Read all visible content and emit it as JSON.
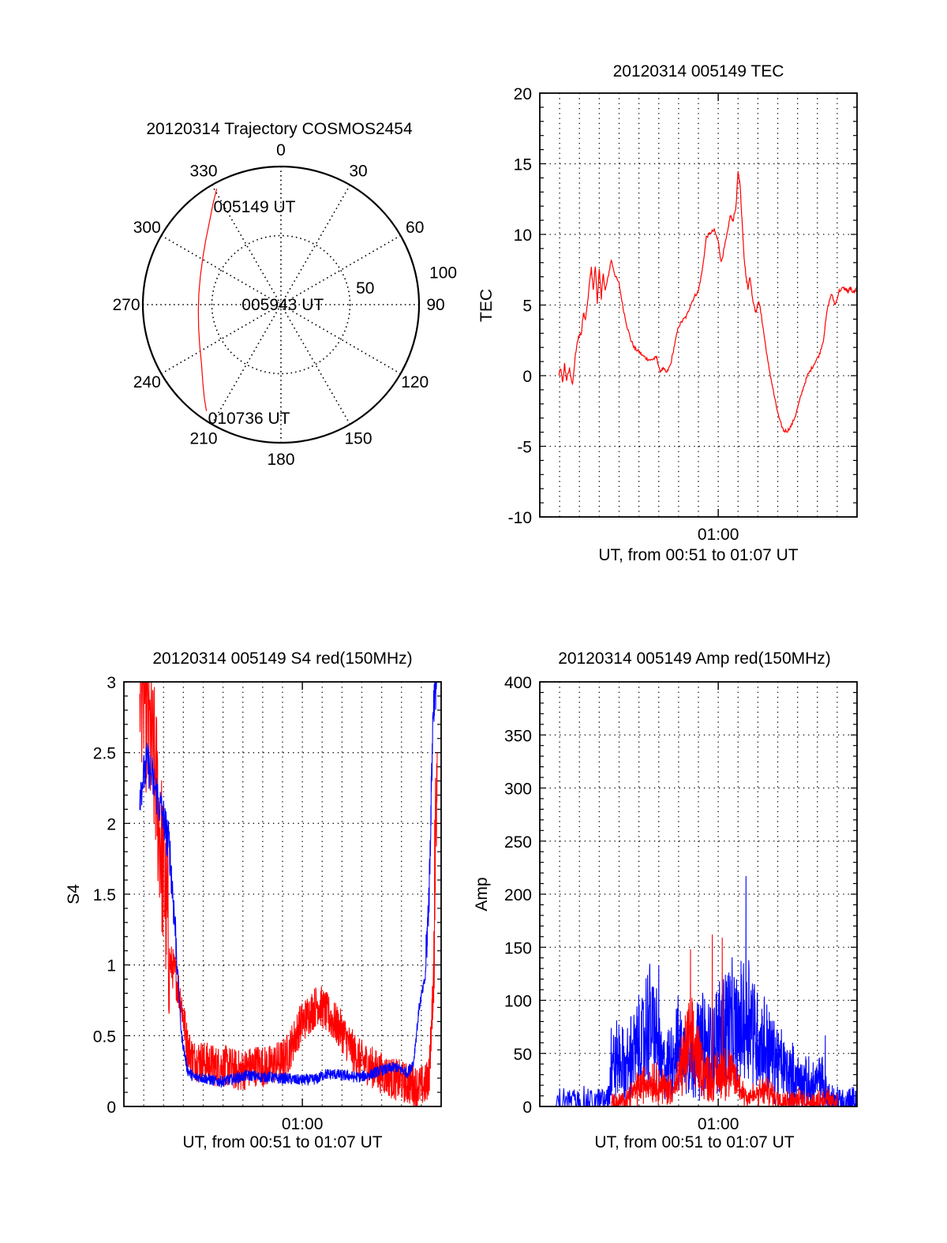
{
  "colors": {
    "red_series": "#ff0000",
    "blue_series": "#0000ff",
    "axis": "#000000",
    "grid": "#000000",
    "background": "#ffffff"
  },
  "chart_data": [
    {
      "id": "trajectory",
      "type": "polar",
      "title": "20120314 Trajectory COSMOS2454",
      "angle_labels": [
        "0",
        "30",
        "60",
        "90",
        "120",
        "150",
        "180",
        "210",
        "240",
        "270",
        "300",
        "330"
      ],
      "angles": [
        0,
        30,
        60,
        90,
        120,
        150,
        180,
        210,
        240,
        270,
        300,
        330
      ],
      "radial_labels": [
        "50",
        "100"
      ],
      "radial_values": [
        50,
        100
      ],
      "radial_range": [
        0,
        100
      ],
      "grid": true,
      "series": [
        {
          "name": "trajectory",
          "color": "red",
          "points_azimuth_radius": [
            [
              331,
              96
            ],
            [
              326,
              88
            ],
            [
              319,
              79
            ],
            [
              311,
              72
            ],
            [
              301,
              66
            ],
            [
              290,
              62
            ],
            [
              278,
              60
            ],
            [
              266,
              60
            ],
            [
              254,
              62
            ],
            [
              243,
              66
            ],
            [
              233,
              72
            ],
            [
              225,
              80
            ],
            [
              219,
              88
            ],
            [
              215,
              94
            ]
          ]
        }
      ],
      "annotations": [
        {
          "text": "005149 UT",
          "azimuth": 331,
          "radius": 96
        },
        {
          "text": "005943 UT",
          "azimuth": 280,
          "radius": 30
        },
        {
          "text": "010736 UT",
          "azimuth": 215,
          "radius": 94
        }
      ]
    },
    {
      "id": "tec",
      "type": "line",
      "title": "20120314 005149 TEC",
      "xlabel": "UT, from 00:51 to 01:07 UT",
      "ylabel": "TEC",
      "xlim_minutes": [
        51.0,
        67.0
      ],
      "xticks": [
        {
          "minute": 60,
          "label": "01:00"
        }
      ],
      "ylim": [
        -10,
        20
      ],
      "yticks": [
        -10,
        -5,
        0,
        5,
        10,
        15,
        20
      ],
      "ytick_labels": [
        "-10",
        "-5",
        "0",
        "5",
        "10",
        "15",
        "20"
      ],
      "grid": true,
      "series": [
        {
          "name": "TEC",
          "color": "red",
          "x_minutes": [
            51.95,
            52.05,
            52.15,
            52.25,
            52.35,
            52.5,
            52.65,
            52.8,
            52.95,
            53.1,
            53.2,
            53.3,
            53.4,
            53.5,
            53.6,
            53.7,
            53.8,
            53.9,
            54.0,
            54.1,
            54.2,
            54.3,
            54.45,
            54.6,
            54.8,
            55.0,
            55.2,
            55.4,
            55.6,
            55.8,
            56.0,
            56.2,
            56.4,
            56.6,
            56.75,
            56.9,
            57.05,
            57.2,
            57.4,
            57.6,
            57.8,
            58.0,
            58.2,
            58.4,
            58.6,
            58.8,
            59.0,
            59.2,
            59.4,
            59.6,
            59.8,
            60.0,
            60.15,
            60.3,
            60.45,
            60.6,
            60.75,
            60.9,
            61.0,
            61.1,
            61.2,
            61.3,
            61.4,
            61.5,
            61.6,
            61.75,
            61.9,
            62.05,
            62.2,
            62.35,
            62.5,
            62.7,
            62.9,
            63.1,
            63.3,
            63.5,
            63.7,
            63.9,
            64.1,
            64.3,
            64.5,
            64.7,
            64.9,
            65.1,
            65.3,
            65.5,
            65.7,
            65.9,
            66.1,
            66.3,
            66.45,
            66.55,
            66.65,
            66.75,
            66.85,
            66.95,
            67.0
          ],
          "y": [
            0.0,
            0.5,
            -0.5,
            0.8,
            -0.3,
            0.5,
            -0.7,
            1.5,
            2.8,
            3.0,
            4.5,
            4.0,
            5.0,
            6.5,
            7.6,
            6.0,
            7.8,
            5.2,
            7.6,
            5.5,
            7.2,
            6.0,
            7.0,
            8.2,
            7.1,
            6.5,
            4.8,
            3.5,
            2.5,
            1.9,
            1.7,
            1.4,
            1.2,
            1.1,
            1.2,
            1.3,
            0.3,
            0.5,
            0.2,
            0.8,
            2.2,
            3.5,
            3.9,
            4.2,
            5.0,
            5.6,
            6.0,
            7.5,
            9.8,
            10.1,
            10.3,
            9.5,
            8.0,
            9.0,
            10.0,
            11.3,
            11.0,
            12.0,
            14.5,
            13.5,
            11.0,
            8.5,
            7.0,
            6.2,
            7.0,
            5.3,
            4.5,
            5.3,
            4.0,
            2.5,
            1.0,
            -0.5,
            -2.0,
            -3.2,
            -3.9,
            -3.9,
            -3.5,
            -2.8,
            -1.8,
            -0.8,
            0.0,
            0.5,
            1.0,
            1.5,
            2.5,
            4.7,
            5.8,
            5.0,
            6.0,
            6.2,
            6.1,
            5.9,
            6.2,
            6.0,
            5.9,
            6.2,
            6.2
          ]
        }
      ]
    },
    {
      "id": "s4",
      "type": "line",
      "title": "20120314 005149 S4 red(150MHz)",
      "xlabel": "UT, from 00:51 to 01:07 UT",
      "ylabel": "S4",
      "xlim_minutes": [
        51.0,
        67.0
      ],
      "xticks": [
        {
          "minute": 60,
          "label": "01:00"
        }
      ],
      "ylim": [
        0,
        3
      ],
      "yticks": [
        0,
        0.5,
        1,
        1.5,
        2,
        2.5,
        3
      ],
      "ytick_labels": [
        "0",
        "0.5",
        "1",
        "1.5",
        "2",
        "2.5",
        "3"
      ],
      "grid": true,
      "series": [
        {
          "name": "red (150MHz)",
          "color": "red",
          "x_minutes": [
            51.8,
            52.2,
            52.6,
            53.0,
            53.3,
            53.6,
            53.9,
            54.2,
            54.5,
            54.8,
            55.1,
            55.4,
            55.7,
            56.0,
            56.3,
            56.6,
            56.9,
            57.2,
            57.5,
            57.8,
            58.1,
            58.4,
            58.7,
            59.0,
            59.3,
            59.6,
            59.9,
            60.2,
            60.5,
            60.8,
            61.1,
            61.4,
            61.7,
            62.0,
            62.3,
            62.6,
            62.9,
            63.2,
            63.5,
            63.8,
            64.1,
            64.4,
            64.7,
            65.0,
            65.3,
            65.6,
            65.9,
            66.2,
            66.4,
            66.6,
            66.8
          ],
          "y": [
            3.0,
            2.6,
            2.2,
            1.5,
            1.0,
            0.9,
            0.7,
            0.4,
            0.3,
            0.3,
            0.28,
            0.27,
            0.25,
            0.26,
            0.25,
            0.23,
            0.22,
            0.24,
            0.25,
            0.27,
            0.25,
            0.26,
            0.28,
            0.3,
            0.35,
            0.45,
            0.55,
            0.6,
            0.65,
            0.7,
            0.65,
            0.6,
            0.55,
            0.5,
            0.42,
            0.35,
            0.3,
            0.28,
            0.25,
            0.22,
            0.2,
            0.18,
            0.16,
            0.15,
            0.13,
            0.12,
            0.11,
            0.12,
            0.2,
            0.8,
            2.5
          ],
          "noise_amplitude": 0.3
        },
        {
          "name": "blue",
          "color": "blue",
          "x_minutes": [
            51.8,
            52.2,
            52.6,
            53.0,
            53.3,
            53.6,
            53.9,
            54.2,
            54.5,
            54.8,
            55.1,
            55.4,
            55.7,
            56.0,
            56.3,
            56.6,
            56.9,
            57.2,
            57.5,
            57.8,
            58.1,
            58.4,
            58.7,
            59.0,
            59.3,
            59.6,
            59.9,
            60.2,
            60.5,
            60.8,
            61.1,
            61.4,
            61.7,
            62.0,
            62.3,
            62.6,
            62.9,
            63.2,
            63.5,
            63.8,
            64.1,
            64.4,
            64.7,
            65.0,
            65.3,
            65.6,
            65.9,
            66.2,
            66.4,
            66.6,
            66.8
          ],
          "y": [
            2.2,
            2.4,
            2.2,
            2.0,
            1.8,
            1.2,
            0.5,
            0.25,
            0.2,
            0.2,
            0.19,
            0.18,
            0.17,
            0.17,
            0.18,
            0.19,
            0.2,
            0.21,
            0.21,
            0.2,
            0.2,
            0.2,
            0.19,
            0.19,
            0.19,
            0.18,
            0.18,
            0.18,
            0.18,
            0.19,
            0.22,
            0.22,
            0.22,
            0.21,
            0.21,
            0.2,
            0.2,
            0.21,
            0.22,
            0.24,
            0.25,
            0.26,
            0.27,
            0.25,
            0.23,
            0.3,
            0.7,
            0.9,
            1.5,
            2.8,
            3.0
          ],
          "noise_amplitude": 0.08
        }
      ]
    },
    {
      "id": "amp",
      "type": "line",
      "title": "20120314 005149 Amp red(150MHz)",
      "xlabel": "UT, from 00:51 to 01:07 UT",
      "ylabel": "Amp",
      "xlim_minutes": [
        51.0,
        67.0
      ],
      "xticks": [
        {
          "minute": 60,
          "label": "01:00"
        }
      ],
      "ylim": [
        0,
        400
      ],
      "yticks": [
        0,
        50,
        100,
        150,
        200,
        250,
        300,
        350,
        400
      ],
      "ytick_labels": [
        "0",
        "50",
        "100",
        "150",
        "200",
        "250",
        "300",
        "350",
        "400"
      ],
      "grid": true,
      "series": [
        {
          "name": "blue",
          "color": "blue",
          "x_minutes": [
            51.8,
            52.5,
            53.2,
            53.9,
            54.4,
            54.7,
            55.0,
            55.3,
            55.6,
            55.9,
            56.2,
            56.5,
            56.8,
            57.1,
            57.4,
            57.7,
            58.0,
            58.3,
            58.6,
            58.9,
            59.2,
            59.5,
            59.8,
            60.1,
            60.4,
            60.7,
            61.0,
            61.3,
            61.6,
            61.9,
            62.2,
            62.5,
            62.8,
            63.1,
            63.4,
            63.7,
            64.0,
            64.3,
            64.6,
            64.9,
            65.2,
            65.5,
            65.8,
            66.1,
            66.4,
            66.7,
            67.0
          ],
          "y": [
            3,
            3,
            3,
            3,
            5,
            40,
            45,
            35,
            45,
            55,
            60,
            80,
            70,
            40,
            35,
            50,
            55,
            50,
            45,
            55,
            60,
            55,
            60,
            70,
            80,
            75,
            70,
            80,
            90,
            65,
            60,
            55,
            45,
            40,
            35,
            30,
            25,
            22,
            20,
            20,
            25,
            10,
            5,
            3,
            3,
            3,
            3
          ],
          "peaks": [
            {
              "x_minute": 61.4,
              "y": 217
            },
            {
              "x_minute": 57.0,
              "y": 133
            },
            {
              "x_minute": 55.6,
              "y": 85
            },
            {
              "x_minute": 54.6,
              "y": 74
            },
            {
              "x_minute": 65.4,
              "y": 67
            }
          ],
          "noise_amplitude": 30
        },
        {
          "name": "red (150MHz)",
          "color": "red",
          "x_minutes": [
            54.6,
            54.9,
            55.2,
            55.5,
            55.8,
            56.1,
            56.4,
            56.7,
            57.0,
            57.3,
            57.6,
            57.9,
            58.2,
            58.5,
            58.8,
            59.1,
            59.4,
            59.7,
            60.0,
            60.3,
            60.6,
            60.9,
            61.2,
            61.5,
            61.8,
            62.1,
            62.4,
            62.7,
            63.0,
            63.3,
            63.6,
            63.9,
            64.2,
            64.5,
            64.8,
            65.1,
            65.4,
            65.7,
            66.0
          ],
          "y": [
            5,
            3,
            5,
            10,
            15,
            20,
            22,
            25,
            22,
            18,
            15,
            20,
            40,
            60,
            55,
            40,
            30,
            25,
            30,
            35,
            30,
            25,
            15,
            10,
            10,
            12,
            15,
            12,
            8,
            6,
            6,
            7,
            6,
            5,
            5,
            6,
            8,
            5,
            3
          ],
          "peaks": [
            {
              "x_minute": 59.7,
              "y": 162
            },
            {
              "x_minute": 60.2,
              "y": 159
            },
            {
              "x_minute": 58.6,
              "y": 148
            }
          ],
          "noise_amplitude": 15
        }
      ]
    }
  ]
}
